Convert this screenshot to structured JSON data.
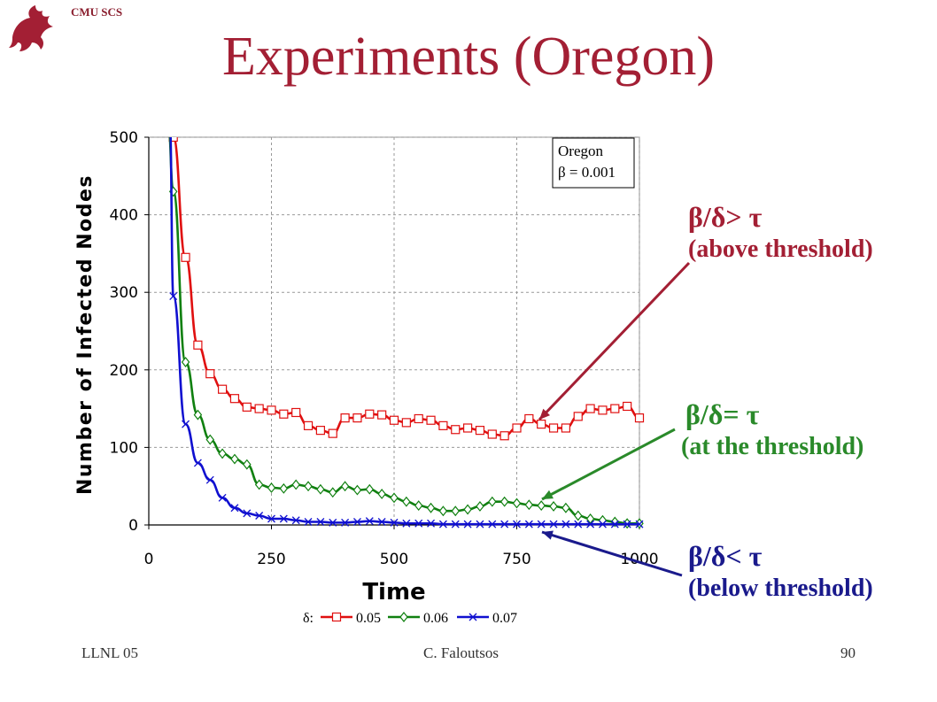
{
  "header": {
    "label": "CMU SCS",
    "logo_icon": "griffin-logo-icon"
  },
  "slide_title": "Experiments (Oregon)",
  "annotations": [
    {
      "math": "β/δ> τ",
      "sub": "(above threshold)",
      "color": "#a31f34"
    },
    {
      "math": "β/δ= τ",
      "sub": "(at the threshold)",
      "color": "#2a8a2a"
    },
    {
      "math": "β/δ< τ",
      "sub": "(below threshold)",
      "color": "#1a1a8c"
    }
  ],
  "footer": {
    "left": "LLNL 05",
    "center": "C. Faloutsos",
    "right": "90"
  },
  "chart_data": {
    "type": "line",
    "xlabel": "Time",
    "ylabel": "Number of Infected Nodes",
    "xlim": [
      0,
      1000
    ],
    "ylim": [
      0,
      500
    ],
    "xticks": [
      0,
      250,
      500,
      750,
      1000
    ],
    "yticks": [
      0,
      100,
      200,
      300,
      400,
      500
    ],
    "grid": true,
    "inset_text": [
      "Oregon",
      "β =  0.001"
    ],
    "legend_prefix": "δ:",
    "legend_placement": "bottom",
    "x": [
      50,
      75,
      100,
      125,
      150,
      175,
      200,
      225,
      250,
      275,
      300,
      325,
      350,
      375,
      400,
      425,
      450,
      475,
      500,
      525,
      550,
      575,
      600,
      625,
      650,
      675,
      700,
      725,
      750,
      775,
      800,
      825,
      850,
      875,
      900,
      925,
      950,
      975,
      1000
    ],
    "series": [
      {
        "name": "0.05",
        "color": "#e01010",
        "marker": "square",
        "values": [
          500,
          345,
          232,
          195,
          175,
          163,
          152,
          150,
          148,
          143,
          145,
          128,
          122,
          118,
          138,
          138,
          143,
          142,
          135,
          132,
          137,
          135,
          128,
          123,
          125,
          122,
          117,
          115,
          125,
          137,
          130,
          125,
          125,
          140,
          150,
          148,
          150,
          153,
          138
        ]
      },
      {
        "name": "0.06",
        "color": "#108010",
        "marker": "diamond",
        "values": [
          430,
          210,
          142,
          110,
          92,
          85,
          78,
          52,
          48,
          47,
          52,
          50,
          46,
          42,
          50,
          45,
          46,
          40,
          35,
          30,
          25,
          22,
          18,
          18,
          20,
          24,
          30,
          30,
          28,
          26,
          25,
          24,
          22,
          12,
          8,
          6,
          4,
          2,
          2
        ]
      },
      {
        "name": "0.07",
        "color": "#1010d0",
        "marker": "x",
        "values": [
          295,
          130,
          80,
          58,
          35,
          22,
          15,
          12,
          8,
          8,
          6,
          4,
          4,
          3,
          3,
          4,
          5,
          4,
          3,
          2,
          2,
          2,
          1,
          1,
          1,
          1,
          1,
          1,
          1,
          1,
          1,
          1,
          1,
          1,
          1,
          1,
          1,
          1,
          1
        ]
      }
    ]
  }
}
